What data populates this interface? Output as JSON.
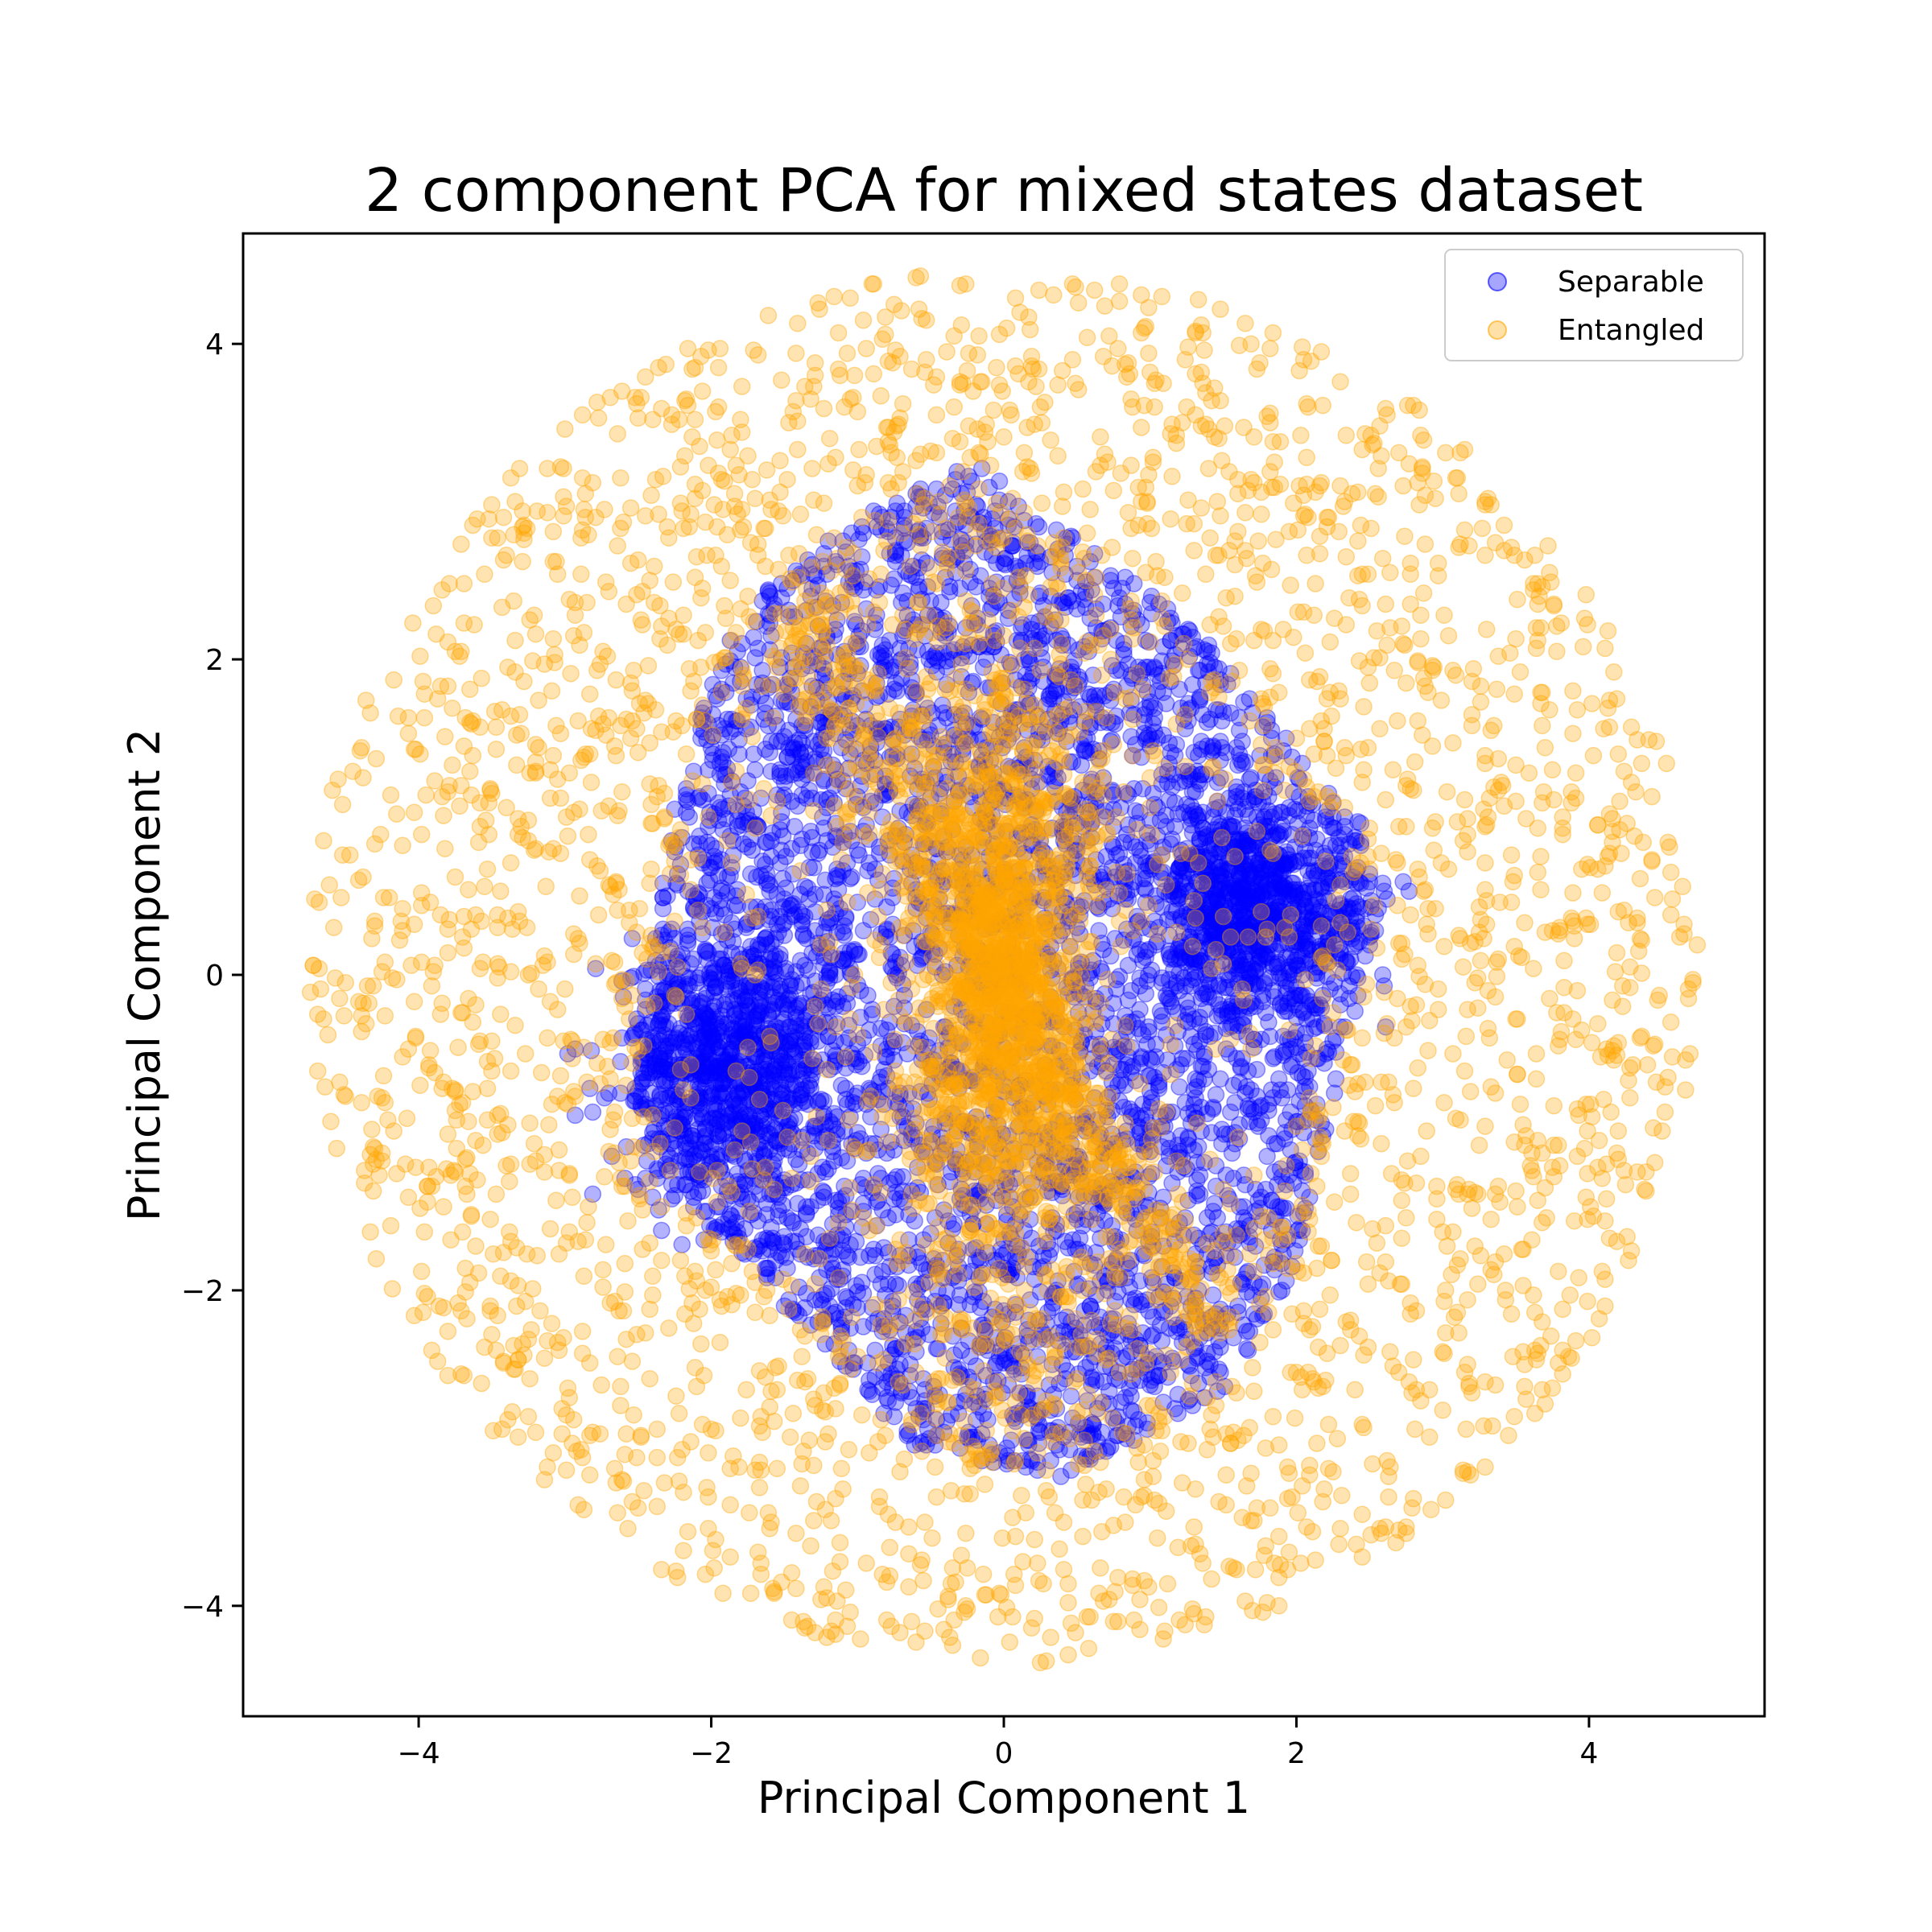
{
  "chart_data": {
    "type": "scatter",
    "title": "2 component PCA for mixed states dataset",
    "xlabel": "Principal Component 1",
    "ylabel": "Principal Component 2",
    "xlim": [
      -5.2,
      5.2
    ],
    "ylim": [
      -4.7,
      4.7
    ],
    "xticks": [
      -4,
      -2,
      0,
      2,
      4
    ],
    "yticks": [
      -4,
      -2,
      0,
      2,
      4
    ],
    "xtick_labels": [
      "−4",
      "−2",
      "0",
      "2",
      "4"
    ],
    "ytick_labels": [
      "−4",
      "−2",
      "0",
      "2",
      "4"
    ],
    "grid": false,
    "legend_position": "top-right",
    "marker_alpha": 0.3,
    "series": [
      {
        "name": "Separable",
        "color": "#0000ff",
        "description_points": "dense cloud centered at origin within an irregular hexagonal region spanning x from -2.6 to 2.6 and y from -3.3 to 3.3",
        "points": []
      },
      {
        "name": "Entangled",
        "color": "#ffa500",
        "description_points": "disc of radius about 4.8 centered at origin, plus a dense vertical band through the center",
        "points": []
      }
    ]
  }
}
